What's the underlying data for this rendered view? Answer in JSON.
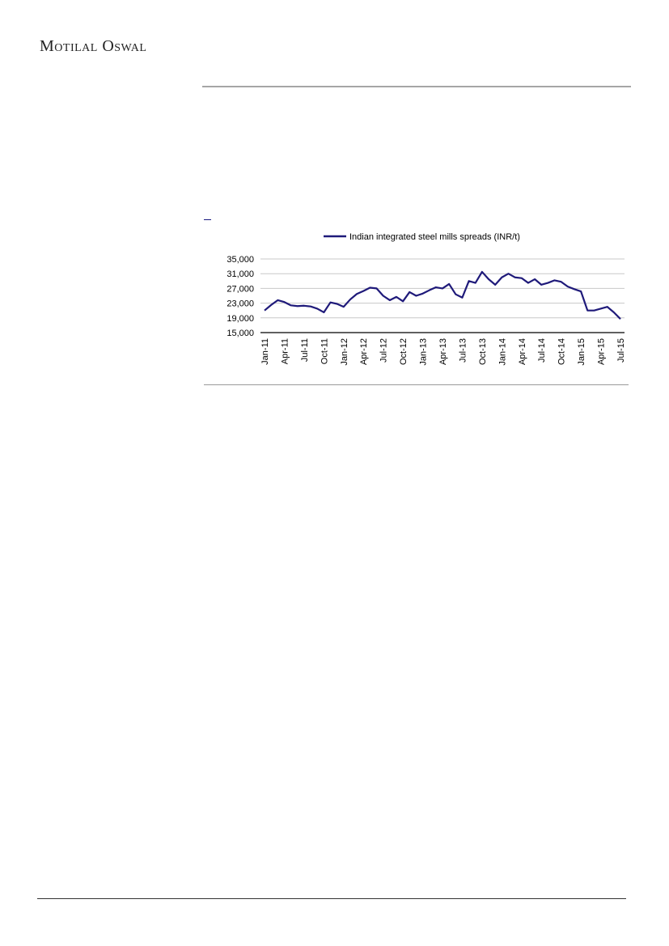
{
  "header": {
    "logo_text": "Motilal Oswal"
  },
  "chart_data": {
    "type": "line",
    "title": "",
    "xlabel": "",
    "ylabel": "",
    "ylim": [
      15000,
      35000
    ],
    "yticks": [
      "15,000",
      "19,000",
      "23,000",
      "27,000",
      "31,000",
      "35,000"
    ],
    "ytick_values": [
      15000,
      19000,
      23000,
      27000,
      31000,
      35000
    ],
    "grid": true,
    "legend_position": "top",
    "line_color": "#1f1a7a",
    "xtick_labels": [
      "Jan-11",
      "Apr-11",
      "Jul-11",
      "Oct-11",
      "Jan-12",
      "Apr-12",
      "Jul-12",
      "Oct-12",
      "Jan-13",
      "Apr-13",
      "Jul-13",
      "Oct-13",
      "Jan-14",
      "Apr-14",
      "Jul-14",
      "Oct-14",
      "Jan-15",
      "Apr-15",
      "Jul-15"
    ],
    "series": [
      {
        "name": "Indian integrated steel mills spreads (INR/t)",
        "x": [
          "Jan-11",
          "Feb-11",
          "Mar-11",
          "Apr-11",
          "May-11",
          "Jun-11",
          "Jul-11",
          "Aug-11",
          "Sep-11",
          "Oct-11",
          "Nov-11",
          "Dec-11",
          "Jan-12",
          "Feb-12",
          "Mar-12",
          "Apr-12",
          "May-12",
          "Jun-12",
          "Jul-12",
          "Aug-12",
          "Sep-12",
          "Oct-12",
          "Nov-12",
          "Dec-12",
          "Jan-13",
          "Feb-13",
          "Mar-13",
          "Apr-13",
          "May-13",
          "Jun-13",
          "Jul-13",
          "Aug-13",
          "Sep-13",
          "Oct-13",
          "Nov-13",
          "Dec-13",
          "Jan-14",
          "Feb-14",
          "Mar-14",
          "Apr-14",
          "May-14",
          "Jun-14",
          "Jul-14",
          "Aug-14",
          "Sep-14",
          "Oct-14",
          "Nov-14",
          "Dec-14",
          "Jan-15",
          "Feb-15",
          "Mar-15",
          "Apr-15",
          "May-15",
          "Jun-15",
          "Jul-15"
        ],
        "values": [
          21000,
          22500,
          23800,
          23300,
          22400,
          22200,
          22300,
          22100,
          21500,
          20500,
          23200,
          22800,
          22000,
          24000,
          25500,
          26300,
          27200,
          27000,
          25000,
          23800,
          24700,
          23500,
          26000,
          25000,
          25600,
          26500,
          27300,
          27000,
          28200,
          25400,
          24500,
          29000,
          28500,
          31500,
          29500,
          28000,
          30000,
          31000,
          30000,
          29800,
          28500,
          29500,
          28000,
          28500,
          29200,
          28800,
          27500,
          26800,
          26200,
          21000,
          21000,
          21500,
          22000,
          20500,
          18700
        ]
      }
    ]
  }
}
